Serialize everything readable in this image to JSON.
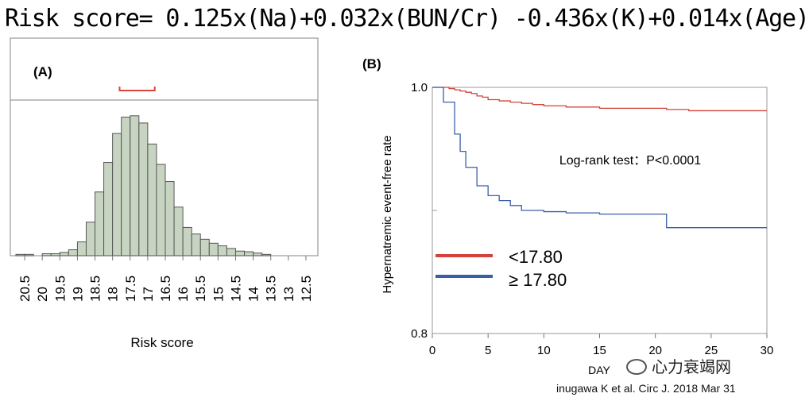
{
  "formula": "Risk score= 0.125x(Na)+0.032x(BUN/Cr) -0.436x(K)+0.014x(Age)",
  "watermark": "心力衰竭网",
  "citation": "inugawa K et al. Circ J. 2018 Mar 31",
  "chart_data": [
    {
      "type": "bar",
      "panel_label": "(A)",
      "title": "",
      "xlabel": "Risk score",
      "ylabel": "",
      "x_reversed": true,
      "xlim": [
        20.75,
        12.25
      ],
      "tick_labels": [
        "20.5",
        "20",
        "19.5",
        "19",
        "18.5",
        "18",
        "17.5",
        "17",
        "16.5",
        "16",
        "15.5",
        "15",
        "14.5",
        "14",
        "13.5",
        "13",
        "12.5"
      ],
      "bin_width": 0.25,
      "bin_starts": [
        20.75,
        20.5,
        20.25,
        20.0,
        19.75,
        19.5,
        19.25,
        19.0,
        18.75,
        18.5,
        18.25,
        18.0,
        17.75,
        17.5,
        17.25,
        17.0,
        16.75,
        16.5,
        16.25,
        16.0,
        15.75,
        15.5,
        15.25,
        15.0,
        14.75,
        14.5,
        14.25,
        14.0,
        13.75,
        13.5
      ],
      "values": [
        1.0,
        1.0,
        0,
        1.5,
        1.5,
        2.5,
        4.5,
        10.5,
        25.5,
        48.5,
        71.0,
        93.0,
        105.5,
        106.5,
        101.0,
        85.0,
        69.5,
        56.5,
        37.0,
        21.5,
        16.5,
        12.5,
        9.5,
        7.5,
        5.5,
        3.5,
        3.0,
        2.0,
        1.0,
        0
      ],
      "ylim": [
        0,
        110
      ],
      "range_marker": {
        "from": 17.8,
        "to": 16.8,
        "color": "#d9453b"
      },
      "bar_color": "#c8d4c2"
    },
    {
      "type": "line",
      "panel_label": "(B)",
      "title": "",
      "xlabel": "DAY",
      "ylabel": "Hypernatremic event-free rate",
      "xlim": [
        0,
        30
      ],
      "ylim": [
        0.8,
        1.0
      ],
      "x_ticks": [
        "0",
        "5",
        "10",
        "15",
        "20",
        "25",
        "30"
      ],
      "y_ticks": [
        "0.8",
        "1.0"
      ],
      "annotation": "Log-rank test：P<0.0001",
      "series": [
        {
          "name": "<17.80",
          "color": "#d4433b",
          "x": [
            0,
            1,
            1.5,
            2,
            2.5,
            3,
            3.5,
            4,
            4.5,
            5,
            6,
            7,
            8,
            9,
            10,
            11,
            12,
            15,
            18,
            21,
            23,
            25,
            28,
            30
          ],
          "y": [
            1.0,
            1.0,
            0.999,
            0.998,
            0.997,
            0.996,
            0.995,
            0.993,
            0.992,
            0.99,
            0.989,
            0.988,
            0.987,
            0.986,
            0.985,
            0.985,
            0.984,
            0.983,
            0.983,
            0.982,
            0.981,
            0.981,
            0.981,
            0.981
          ]
        },
        {
          "name": "≥ 17.80",
          "color": "#3a5fa8",
          "x": [
            0,
            1,
            2,
            2.5,
            3,
            4,
            5,
            6,
            7,
            8,
            10,
            12,
            15,
            18,
            21,
            25,
            30
          ],
          "y": [
            1.0,
            0.988,
            0.962,
            0.948,
            0.935,
            0.92,
            0.912,
            0.908,
            0.904,
            0.9,
            0.899,
            0.898,
            0.897,
            0.897,
            0.886,
            0.886,
            0.886
          ]
        }
      ]
    }
  ]
}
